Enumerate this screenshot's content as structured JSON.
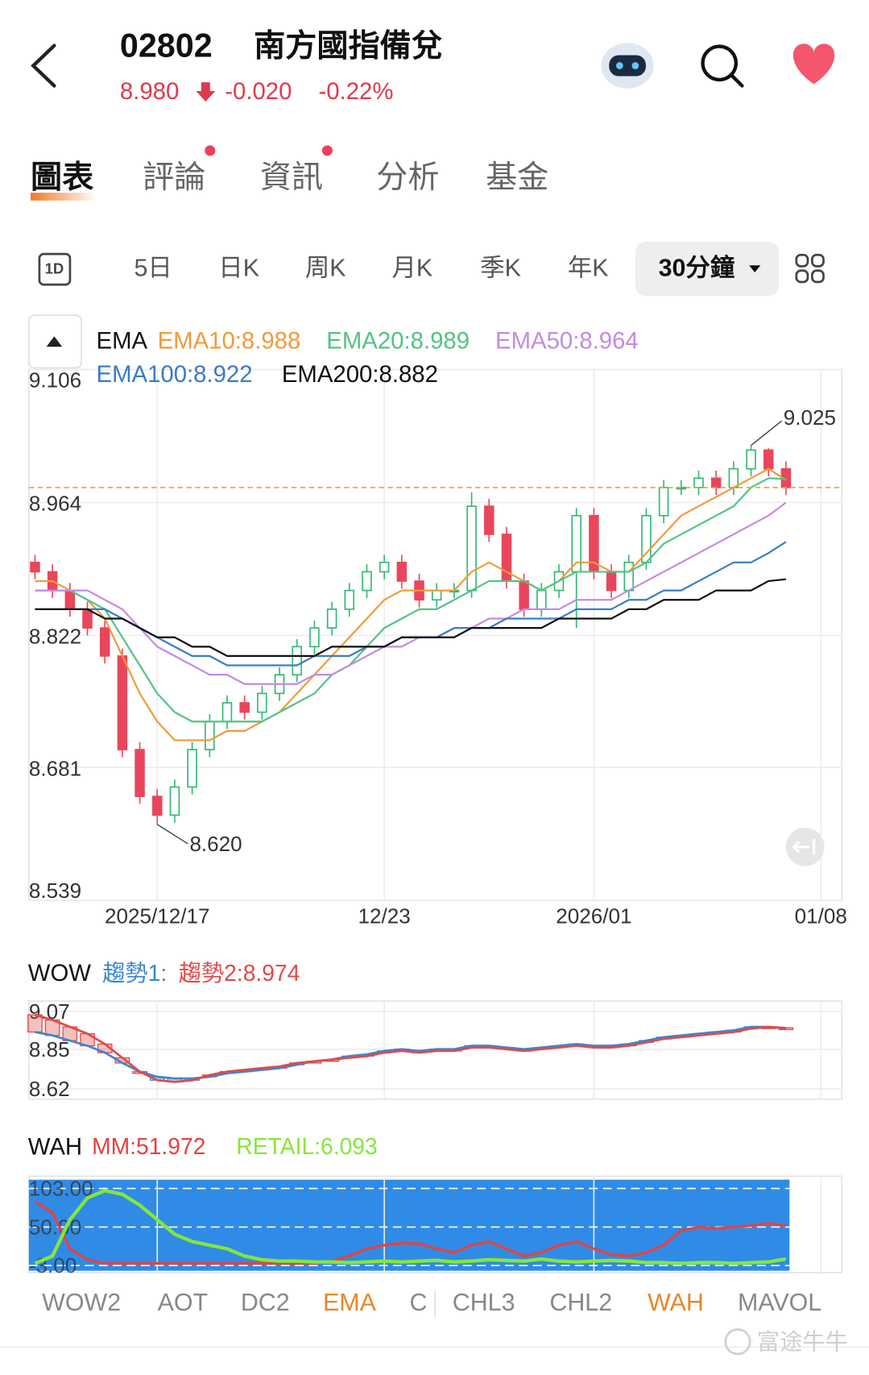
{
  "header": {
    "code": "02802",
    "name": "南方國指備兌",
    "price": "8.980",
    "change": "-0.020",
    "change_percent": "-0.22%"
  },
  "tabs": [
    "圖表",
    "評論",
    "資訊",
    "分析",
    "基金"
  ],
  "periods": [
    "1D",
    "5日",
    "日K",
    "周K",
    "月K",
    "季K",
    "年K",
    "30分鐘"
  ],
  "chart_data": [
    {
      "type": "candlestick",
      "legend_title": "EMA",
      "open": [
        8.9,
        8.89,
        8.87,
        8.85,
        8.83,
        8.8,
        8.7,
        8.65,
        8.63,
        8.66,
        8.7,
        8.73,
        8.75,
        8.74,
        8.76,
        8.78,
        8.81,
        8.83,
        8.85,
        8.87,
        8.89,
        8.9,
        8.88,
        8.86,
        8.87,
        8.87,
        8.96,
        8.93,
        8.88,
        8.85,
        8.87,
        8.89,
        8.95,
        8.89,
        8.87,
        8.9,
        8.95,
        8.98,
        8.98,
        8.99,
        8.98,
        9.0,
        9.02,
        9.0
      ],
      "high": [
        8.908,
        8.898,
        8.878,
        8.858,
        8.838,
        8.808,
        8.708,
        8.658,
        8.668,
        8.708,
        8.738,
        8.758,
        8.758,
        8.768,
        8.788,
        8.818,
        8.838,
        8.858,
        8.878,
        8.898,
        8.908,
        8.908,
        8.888,
        8.878,
        8.878,
        8.975,
        8.968,
        8.938,
        8.888,
        8.878,
        8.898,
        8.958,
        8.958,
        8.898,
        8.908,
        8.958,
        8.988,
        8.988,
        8.998,
        8.998,
        9.008,
        9.025,
        9.022,
        9.008
      ],
      "low": [
        8.882,
        8.862,
        8.842,
        8.822,
        8.792,
        8.692,
        8.642,
        8.62,
        8.622,
        8.652,
        8.692,
        8.722,
        8.732,
        8.732,
        8.752,
        8.772,
        8.802,
        8.822,
        8.842,
        8.862,
        8.882,
        8.872,
        8.852,
        8.852,
        8.862,
        8.862,
        8.922,
        8.872,
        8.842,
        8.842,
        8.862,
        8.83,
        8.882,
        8.862,
        8.862,
        8.892,
        8.942,
        8.972,
        8.972,
        8.972,
        8.972,
        8.992,
        8.992,
        8.972
      ],
      "close": [
        8.89,
        8.87,
        8.85,
        8.83,
        8.8,
        8.7,
        8.65,
        8.63,
        8.66,
        8.7,
        8.73,
        8.75,
        8.74,
        8.76,
        8.78,
        8.81,
        8.83,
        8.85,
        8.87,
        8.89,
        8.9,
        8.88,
        8.86,
        8.87,
        8.87,
        8.96,
        8.93,
        8.88,
        8.85,
        8.87,
        8.89,
        8.95,
        8.89,
        8.87,
        8.9,
        8.95,
        8.98,
        8.98,
        8.99,
        8.98,
        9.0,
        9.02,
        9.0,
        8.98
      ],
      "up_color": "#2fb872",
      "down_color": "#e9465b",
      "series": [
        {
          "name": "EMA10:8.988",
          "color": "#f29a38",
          "values": [
            8.88,
            8.88,
            8.87,
            8.86,
            8.84,
            8.8,
            8.76,
            8.73,
            8.71,
            8.71,
            8.71,
            8.72,
            8.72,
            8.73,
            8.74,
            8.76,
            8.78,
            8.8,
            8.82,
            8.84,
            8.86,
            8.87,
            8.87,
            8.87,
            8.87,
            8.89,
            8.9,
            8.89,
            8.88,
            8.87,
            8.88,
            8.9,
            8.9,
            8.89,
            8.89,
            8.91,
            8.93,
            8.95,
            8.96,
            8.97,
            8.98,
            8.99,
            9.0,
            8.988
          ]
        },
        {
          "name": "EMA20:8.989",
          "color": "#52c384",
          "values": [
            8.87,
            8.87,
            8.87,
            8.86,
            8.85,
            8.82,
            8.79,
            8.76,
            8.74,
            8.73,
            8.73,
            8.73,
            8.73,
            8.73,
            8.74,
            8.75,
            8.76,
            8.78,
            8.79,
            8.81,
            8.83,
            8.84,
            8.85,
            8.85,
            8.86,
            8.87,
            8.88,
            8.88,
            8.88,
            8.87,
            8.88,
            8.89,
            8.89,
            8.89,
            8.89,
            8.9,
            8.92,
            8.93,
            8.94,
            8.95,
            8.96,
            8.98,
            8.99,
            8.989
          ]
        },
        {
          "name": "EMA50:8.964",
          "color": "#c38be2",
          "values": [
            8.87,
            8.87,
            8.87,
            8.87,
            8.86,
            8.85,
            8.83,
            8.81,
            8.8,
            8.79,
            8.78,
            8.78,
            8.77,
            8.77,
            8.77,
            8.77,
            8.78,
            8.78,
            8.79,
            8.8,
            8.81,
            8.81,
            8.82,
            8.82,
            8.83,
            8.83,
            8.84,
            8.84,
            8.85,
            8.85,
            8.85,
            8.86,
            8.86,
            8.86,
            8.87,
            8.88,
            8.89,
            8.9,
            8.91,
            8.92,
            8.93,
            8.94,
            8.95,
            8.964
          ]
        },
        {
          "name": "EMA100:8.922",
          "color": "#3a7cc6",
          "values": [
            8.85,
            8.85,
            8.85,
            8.85,
            8.85,
            8.84,
            8.83,
            8.82,
            8.81,
            8.8,
            8.8,
            8.79,
            8.79,
            8.79,
            8.79,
            8.79,
            8.8,
            8.8,
            8.8,
            8.81,
            8.81,
            8.82,
            8.82,
            8.82,
            8.83,
            8.83,
            8.83,
            8.84,
            8.84,
            8.84,
            8.84,
            8.85,
            8.85,
            8.85,
            8.86,
            8.86,
            8.87,
            8.87,
            8.88,
            8.89,
            8.9,
            8.9,
            8.91,
            8.922
          ]
        },
        {
          "name": "EMA200:8.882",
          "color": "#111111",
          "values": [
            8.85,
            8.85,
            8.85,
            8.85,
            8.84,
            8.84,
            8.83,
            8.82,
            8.82,
            8.81,
            8.81,
            8.8,
            8.8,
            8.8,
            8.8,
            8.8,
            8.8,
            8.81,
            8.81,
            8.81,
            8.81,
            8.82,
            8.82,
            8.82,
            8.82,
            8.83,
            8.83,
            8.83,
            8.83,
            8.83,
            8.84,
            8.84,
            8.84,
            8.84,
            8.85,
            8.85,
            8.86,
            8.86,
            8.86,
            8.87,
            8.87,
            8.87,
            8.88,
            8.882
          ]
        }
      ],
      "ylim": [
        8.539,
        9.106
      ],
      "yticks": [
        9.106,
        8.964,
        8.822,
        8.681,
        8.539
      ],
      "xlim": [
        -0.35,
        46.2
      ],
      "xticks": [
        {
          "value": 7,
          "label": "2025/12/17"
        },
        {
          "value": 20,
          "label": "12/23"
        },
        {
          "value": 32,
          "label": "2026/01"
        },
        {
          "value": 45,
          "label": "01/08"
        }
      ],
      "grid": true,
      "price_line": 8.98,
      "price_line_color": "#e8a33c",
      "max_label": "9.025",
      "min_label": "8.620"
    },
    {
      "type": "band",
      "title": "WOW",
      "series": [
        {
          "name": "趨勢1:",
          "color": "#3b86d0",
          "values": [
            8.95,
            8.93,
            8.9,
            8.87,
            8.83,
            8.77,
            8.72,
            8.69,
            8.68,
            8.68,
            8.69,
            8.71,
            8.72,
            8.73,
            8.74,
            8.76,
            8.78,
            8.79,
            8.81,
            8.82,
            8.84,
            8.85,
            8.84,
            8.85,
            8.85,
            8.87,
            8.87,
            8.86,
            8.85,
            8.86,
            8.87,
            8.88,
            8.87,
            8.87,
            8.88,
            8.9,
            8.92,
            8.93,
            8.94,
            8.95,
            8.96,
            8.98,
            8.98,
            8.97
          ]
        },
        {
          "name": "趨勢2:8.974",
          "color": "#e24a4a",
          "values": [
            9.05,
            9.02,
            8.98,
            8.94,
            8.88,
            8.8,
            8.72,
            8.67,
            8.66,
            8.67,
            8.7,
            8.72,
            8.73,
            8.74,
            8.75,
            8.77,
            8.78,
            8.79,
            8.8,
            8.81,
            8.83,
            8.84,
            8.83,
            8.84,
            8.84,
            8.86,
            8.86,
            8.85,
            8.84,
            8.85,
            8.86,
            8.87,
            8.86,
            8.86,
            8.87,
            8.89,
            8.91,
            8.92,
            8.93,
            8.94,
            8.95,
            8.97,
            8.98,
            8.974
          ]
        }
      ],
      "ylim": [
        8.56,
        9.13
      ],
      "yticks": [
        9.07,
        8.85,
        8.62
      ]
    },
    {
      "type": "line",
      "title": "WAH",
      "background": "#2f8be6",
      "series": [
        {
          "name": "MM:51.972",
          "color": "#e8413c",
          "values": [
            85,
            70,
            20,
            5,
            0,
            0,
            0,
            0,
            0,
            0,
            0,
            0,
            0,
            0,
            0,
            0,
            0,
            3,
            10,
            20,
            25,
            28,
            27,
            20,
            15,
            25,
            30,
            20,
            10,
            15,
            25,
            30,
            20,
            12,
            10,
            15,
            25,
            45,
            50,
            48,
            50,
            52,
            55,
            51.972
          ]
        },
        {
          "name": "RETAIL:6.093",
          "color": "#86e63a",
          "values": [
            0,
            10,
            60,
            90,
            100,
            95,
            80,
            60,
            40,
            30,
            25,
            20,
            10,
            5,
            3,
            3,
            2,
            2,
            1,
            2,
            3,
            2,
            3,
            4,
            2,
            3,
            5,
            4,
            3,
            6,
            3,
            2,
            3,
            4,
            3,
            1,
            1,
            0,
            1,
            1,
            0,
            1,
            2,
            6.093
          ]
        }
      ],
      "ylim": [
        -12.6,
        119.9
      ],
      "yticks": [
        {
          "value": 103,
          "label": "103.00"
        },
        {
          "value": 50,
          "label": "50.00"
        },
        {
          "value": -3,
          "label": "-3.00"
        }
      ]
    }
  ],
  "indicator_tabs": [
    {
      "label": "WOW2",
      "active": false
    },
    {
      "label": "AOT",
      "active": false
    },
    {
      "label": "DC2",
      "active": false
    },
    {
      "label": "EMA",
      "active": true
    },
    {
      "label": "C",
      "active": false
    },
    {
      "label": "CHL3",
      "active": false
    },
    {
      "label": "CHL2",
      "active": false
    },
    {
      "label": "WAH",
      "active": true
    },
    {
      "label": "MAVOL",
      "active": false
    }
  ],
  "watermark": "富途牛牛"
}
